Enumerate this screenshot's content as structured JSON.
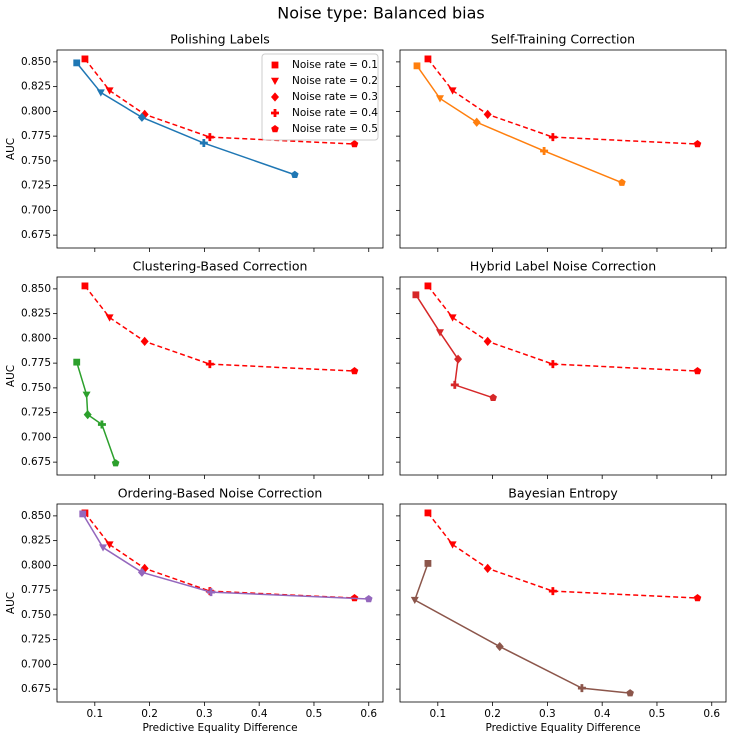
{
  "title": "Noise type: Balanced bias",
  "axes": {
    "xlabel": "Predictive Equality Difference",
    "ylabel": "AUC",
    "xlim": [
      0.031,
      0.626
    ],
    "ylim": [
      0.662,
      0.862
    ],
    "xticks": [
      0.1,
      0.2,
      0.3,
      0.4,
      0.5,
      0.6
    ],
    "yticks": [
      {
        "value": 0.675,
        "label": "0.675"
      },
      {
        "value": 0.7,
        "label": "0.700"
      },
      {
        "value": 0.725,
        "label": "0.725"
      },
      {
        "value": 0.75,
        "label": "0.750"
      },
      {
        "value": 0.775,
        "label": "0.775"
      },
      {
        "value": 0.8,
        "label": "0.800"
      },
      {
        "value": 0.825,
        "label": "0.825"
      },
      {
        "value": 0.85,
        "label": "0.850"
      }
    ]
  },
  "legend": {
    "position": "upper right",
    "color": "#ff0000",
    "markers": [
      "square",
      "triangle-down",
      "diamond",
      "plus",
      "pentagon"
    ],
    "labels": [
      "Noise rate = 0.1",
      "Noise rate = 0.2",
      "Noise rate = 0.3",
      "Noise rate = 0.4",
      "Noise rate = 0.5"
    ]
  },
  "chart_data": [
    {
      "type": "line",
      "title": "Polishing Labels",
      "series": [
        {
          "color": "#ff0000",
          "dashed": true,
          "x": [
            0.082,
            0.127,
            0.191,
            0.31,
            0.574
          ],
          "values": [
            0.853,
            0.821,
            0.797,
            0.774,
            0.767
          ]
        },
        {
          "color": "#1f77b4",
          "dashed": false,
          "x": [
            0.067,
            0.111,
            0.186,
            0.299,
            0.465
          ],
          "values": [
            0.849,
            0.819,
            0.794,
            0.768,
            0.736
          ]
        }
      ]
    },
    {
      "type": "line",
      "title": "Self-Training Correction",
      "series": [
        {
          "color": "#ff0000",
          "dashed": true,
          "x": [
            0.082,
            0.127,
            0.191,
            0.31,
            0.574
          ],
          "values": [
            0.853,
            0.821,
            0.797,
            0.774,
            0.767
          ]
        },
        {
          "color": "#ff7f0e",
          "dashed": false,
          "x": [
            0.062,
            0.104,
            0.171,
            0.294,
            0.436
          ],
          "values": [
            0.846,
            0.813,
            0.789,
            0.76,
            0.728
          ]
        }
      ]
    },
    {
      "type": "line",
      "title": "Clustering-Based Correction",
      "series": [
        {
          "color": "#ff0000",
          "dashed": true,
          "x": [
            0.082,
            0.127,
            0.191,
            0.31,
            0.574
          ],
          "values": [
            0.853,
            0.821,
            0.797,
            0.774,
            0.767
          ]
        },
        {
          "color": "#2ca02c",
          "dashed": false,
          "x": [
            0.067,
            0.085,
            0.087,
            0.113,
            0.138
          ],
          "values": [
            0.776,
            0.743,
            0.723,
            0.713,
            0.674
          ]
        }
      ]
    },
    {
      "type": "line",
      "title": "Hybrid Label Noise Correction",
      "series": [
        {
          "color": "#ff0000",
          "dashed": true,
          "x": [
            0.082,
            0.127,
            0.191,
            0.31,
            0.574
          ],
          "values": [
            0.853,
            0.821,
            0.797,
            0.774,
            0.767
          ]
        },
        {
          "color": "#d62728",
          "dashed": false,
          "x": [
            0.06,
            0.104,
            0.137,
            0.131,
            0.201
          ],
          "values": [
            0.844,
            0.806,
            0.779,
            0.753,
            0.74
          ]
        }
      ]
    },
    {
      "type": "line",
      "title": "Ordering-Based Noise Correction",
      "series": [
        {
          "color": "#ff0000",
          "dashed": true,
          "x": [
            0.082,
            0.127,
            0.191,
            0.31,
            0.574
          ],
          "values": [
            0.853,
            0.821,
            0.797,
            0.774,
            0.767
          ]
        },
        {
          "color": "#9467bd",
          "dashed": false,
          "x": [
            0.078,
            0.115,
            0.186,
            0.312,
            0.6
          ],
          "values": [
            0.852,
            0.818,
            0.793,
            0.773,
            0.766
          ]
        }
      ]
    },
    {
      "type": "line",
      "title": "Bayesian Entropy",
      "series": [
        {
          "color": "#ff0000",
          "dashed": true,
          "x": [
            0.082,
            0.127,
            0.191,
            0.31,
            0.574
          ],
          "values": [
            0.853,
            0.821,
            0.797,
            0.774,
            0.767
          ]
        },
        {
          "color": "#8c564b",
          "dashed": false,
          "x": [
            0.082,
            0.058,
            0.213,
            0.363,
            0.451
          ],
          "values": [
            0.802,
            0.765,
            0.718,
            0.676,
            0.671
          ]
        }
      ]
    }
  ]
}
